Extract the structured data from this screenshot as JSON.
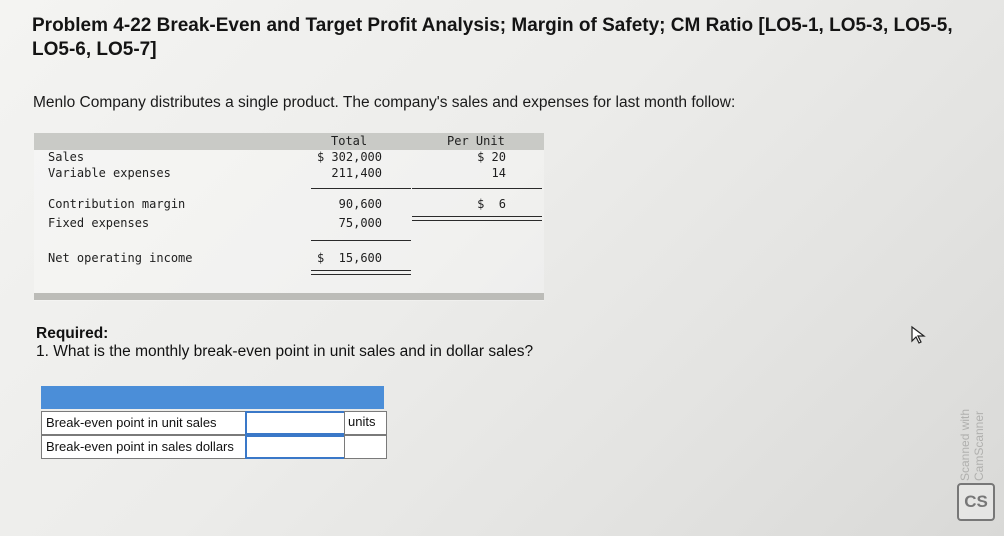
{
  "problem": {
    "title": "Problem 4-22 Break-Even and Target Profit Analysis; Margin of Safety; CM Ratio [LO5-1, LO5-3, LO5-5, LO5-6, LO5-7]",
    "intro": "Menlo Company distributes a single product. The company's sales and expenses for last month follow:"
  },
  "statement": {
    "col_total": "Total",
    "col_per_unit": "Per Unit",
    "rows": [
      {
        "label": "Sales",
        "total": "$ 302,000",
        "per_unit": "$ 20"
      },
      {
        "label": "Variable expenses",
        "total": "211,400",
        "per_unit": "14"
      },
      {
        "label": "Contribution margin",
        "total": "90,600",
        "per_unit": "$  6"
      },
      {
        "label": "Fixed expenses",
        "total": "75,000",
        "per_unit": ""
      },
      {
        "label": "Net operating income",
        "total": "$  15,600",
        "per_unit": ""
      }
    ]
  },
  "required": {
    "heading": "Required:",
    "question": "1. What is the monthly break-even point in unit sales and in dollar sales?"
  },
  "answer_table": {
    "rows": [
      {
        "label": "Break-even point in unit sales",
        "value": "",
        "unit": "units"
      },
      {
        "label": "Break-even point in sales dollars",
        "value": "",
        "unit": ""
      }
    ]
  },
  "watermark": {
    "logo": "CS",
    "text": "Scanned with CamScanner"
  }
}
